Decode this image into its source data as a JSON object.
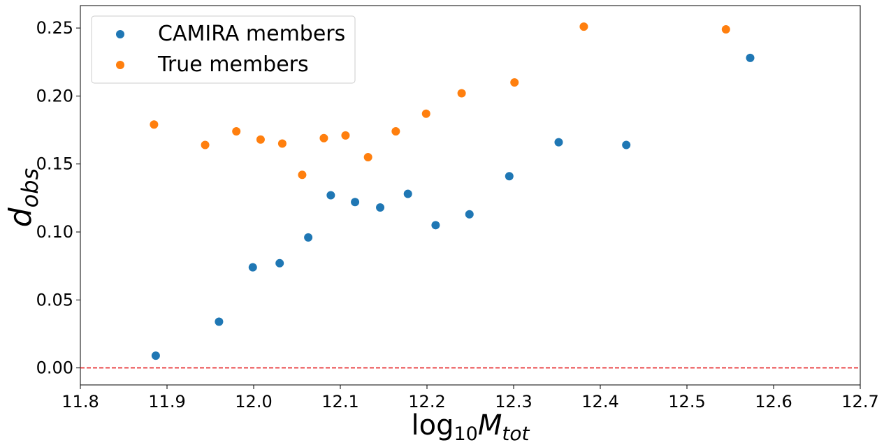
{
  "chart_data": {
    "type": "scatter",
    "xlabel": {
      "base": "log",
      "sub": "10",
      "var": "M",
      "varsub": "tot"
    },
    "ylabel": {
      "var": "d",
      "sub": "obs"
    },
    "xlim": [
      11.8,
      12.7
    ],
    "ylim": [
      -0.0125,
      0.2665
    ],
    "xticks": [
      11.8,
      11.9,
      12.0,
      12.1,
      12.2,
      12.3,
      12.4,
      12.5,
      12.6,
      12.7
    ],
    "xtick_labels": [
      "11.8",
      "11.9",
      "12.0",
      "12.1",
      "12.2",
      "12.3",
      "12.4",
      "12.5",
      "12.6",
      "12.7"
    ],
    "yticks": [
      0.0,
      0.05,
      0.1,
      0.15,
      0.2,
      0.25
    ],
    "ytick_labels": [
      "0.00",
      "0.05",
      "0.10",
      "0.15",
      "0.20",
      "0.25"
    ],
    "grid": false,
    "legend_position": "upper-left",
    "reference_line": {
      "y": 0.0,
      "style": "dashed",
      "color": "#e41a1c"
    },
    "series": [
      {
        "name": "CAMIRA members",
        "color": "#1f77b4",
        "points": [
          [
            11.887,
            0.009
          ],
          [
            11.96,
            0.034
          ],
          [
            11.999,
            0.074
          ],
          [
            12.03,
            0.077
          ],
          [
            12.063,
            0.096
          ],
          [
            12.089,
            0.127
          ],
          [
            12.117,
            0.122
          ],
          [
            12.146,
            0.118
          ],
          [
            12.178,
            0.128
          ],
          [
            12.21,
            0.105
          ],
          [
            12.249,
            0.113
          ],
          [
            12.295,
            0.141
          ],
          [
            12.352,
            0.166
          ],
          [
            12.43,
            0.164
          ],
          [
            12.573,
            0.228
          ]
        ]
      },
      {
        "name": "True members",
        "color": "#ff7f0e",
        "points": [
          [
            11.885,
            0.179
          ],
          [
            11.944,
            0.164
          ],
          [
            11.98,
            0.174
          ],
          [
            12.008,
            0.168
          ],
          [
            12.033,
            0.165
          ],
          [
            12.056,
            0.142
          ],
          [
            12.081,
            0.169
          ],
          [
            12.106,
            0.171
          ],
          [
            12.132,
            0.155
          ],
          [
            12.164,
            0.174
          ],
          [
            12.199,
            0.187
          ],
          [
            12.24,
            0.202
          ],
          [
            12.301,
            0.21
          ],
          [
            12.381,
            0.251
          ],
          [
            12.545,
            0.249
          ]
        ]
      }
    ]
  }
}
